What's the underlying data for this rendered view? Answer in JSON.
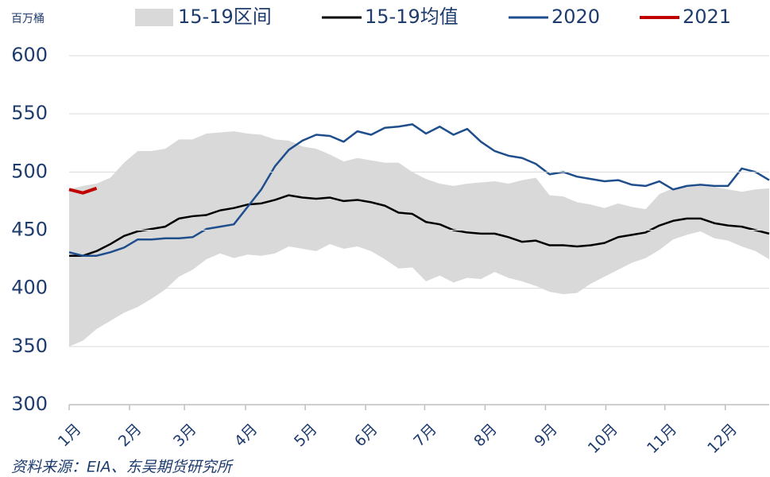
{
  "chart_data": {
    "type": "line",
    "y_label": "百万桶",
    "source": "资料来源：EIA、东吴期货研究所",
    "legend": "top",
    "grid": true,
    "x": [
      1,
      2,
      3,
      4,
      5,
      6,
      7,
      8,
      9,
      10,
      11,
      12,
      13,
      14,
      15,
      16,
      17,
      18,
      19,
      20,
      21,
      22,
      23,
      24,
      25,
      26,
      27,
      28,
      29,
      30,
      31,
      32,
      33,
      34,
      35,
      36,
      37,
      38,
      39,
      40,
      41,
      42,
      43,
      44,
      45,
      46,
      47,
      48,
      49,
      50,
      51,
      52
    ],
    "xlim": [
      1,
      52
    ],
    "xticks": [
      {
        "value": 1,
        "label": "1月"
      },
      {
        "value": 5.4,
        "label": "2月"
      },
      {
        "value": 9.4,
        "label": "3月"
      },
      {
        "value": 13.85,
        "label": "4月"
      },
      {
        "value": 18.2,
        "label": "5月"
      },
      {
        "value": 22.6,
        "label": "6月"
      },
      {
        "value": 26.9,
        "label": "7月"
      },
      {
        "value": 31.3,
        "label": "8月"
      },
      {
        "value": 35.7,
        "label": "9月"
      },
      {
        "value": 40.1,
        "label": "10月"
      },
      {
        "value": 44.4,
        "label": "11月"
      },
      {
        "value": 48.8,
        "label": "12月"
      }
    ],
    "ylim": [
      300,
      600
    ],
    "yticks": [
      300,
      350,
      400,
      450,
      500,
      550,
      600
    ],
    "series": [
      {
        "name": "15-19区间",
        "kind": "band",
        "color": "#d9d9d9",
        "values": [
          485,
          488,
          490,
          495,
          508,
          518,
          518,
          520,
          528,
          528,
          533,
          534,
          535,
          533,
          532,
          528,
          527,
          522,
          520,
          515,
          509,
          512,
          510,
          508,
          508,
          500,
          494,
          490,
          488,
          490,
          491,
          492,
          490,
          493,
          495,
          480,
          479,
          474,
          472,
          469,
          473,
          470,
          468,
          481,
          486,
          487,
          488,
          487,
          485,
          483,
          485,
          486
        ],
        "lower": [
          350,
          355,
          365,
          372,
          379,
          384,
          391,
          399,
          410,
          416,
          425,
          430,
          426,
          429,
          428,
          430,
          436,
          434,
          432,
          438,
          434,
          436,
          432,
          425,
          417,
          418,
          406,
          411,
          405,
          409,
          408,
          414,
          409,
          406,
          402,
          397,
          395,
          396,
          404,
          410,
          416,
          422,
          426,
          433,
          442,
          446,
          449,
          443,
          441,
          436,
          432,
          425
        ]
      },
      {
        "name": "15-19均值",
        "color": "#000000",
        "values": [
          428,
          428,
          432,
          438,
          445,
          449,
          451,
          453,
          460,
          462,
          463,
          467,
          469,
          472,
          473,
          476,
          480,
          478,
          477,
          478,
          475,
          476,
          474,
          471,
          465,
          464,
          457,
          455,
          450,
          448,
          447,
          447,
          444,
          440,
          441,
          437,
          437,
          436,
          437,
          439,
          444,
          446,
          448,
          454,
          458,
          460,
          460,
          456,
          454,
          453,
          450,
          447
        ]
      },
      {
        "name": "2020",
        "color": "#1f4e8c",
        "values": [
          431,
          428,
          428,
          431,
          435,
          442,
          442,
          443,
          443,
          444,
          451,
          453,
          455,
          470,
          485,
          505,
          519,
          527,
          532,
          531,
          526,
          535,
          532,
          538,
          539,
          541,
          533,
          539,
          532,
          537,
          526,
          518,
          514,
          512,
          507,
          498,
          500,
          496,
          494,
          492,
          493,
          489,
          488,
          492,
          485,
          488,
          489,
          488,
          488,
          503,
          500,
          493
        ]
      },
      {
        "name": "2021",
        "color": "#c00000",
        "values": [
          485,
          482,
          486,
          null,
          null,
          null,
          null,
          null,
          null,
          null,
          null,
          null,
          null,
          null,
          null,
          null,
          null,
          null,
          null,
          null,
          null,
          null,
          null,
          null,
          null,
          null,
          null,
          null,
          null,
          null,
          null,
          null,
          null,
          null,
          null,
          null,
          null,
          null,
          null,
          null,
          null,
          null,
          null,
          null,
          null,
          null,
          null,
          null,
          null,
          null,
          null,
          null
        ]
      }
    ]
  }
}
